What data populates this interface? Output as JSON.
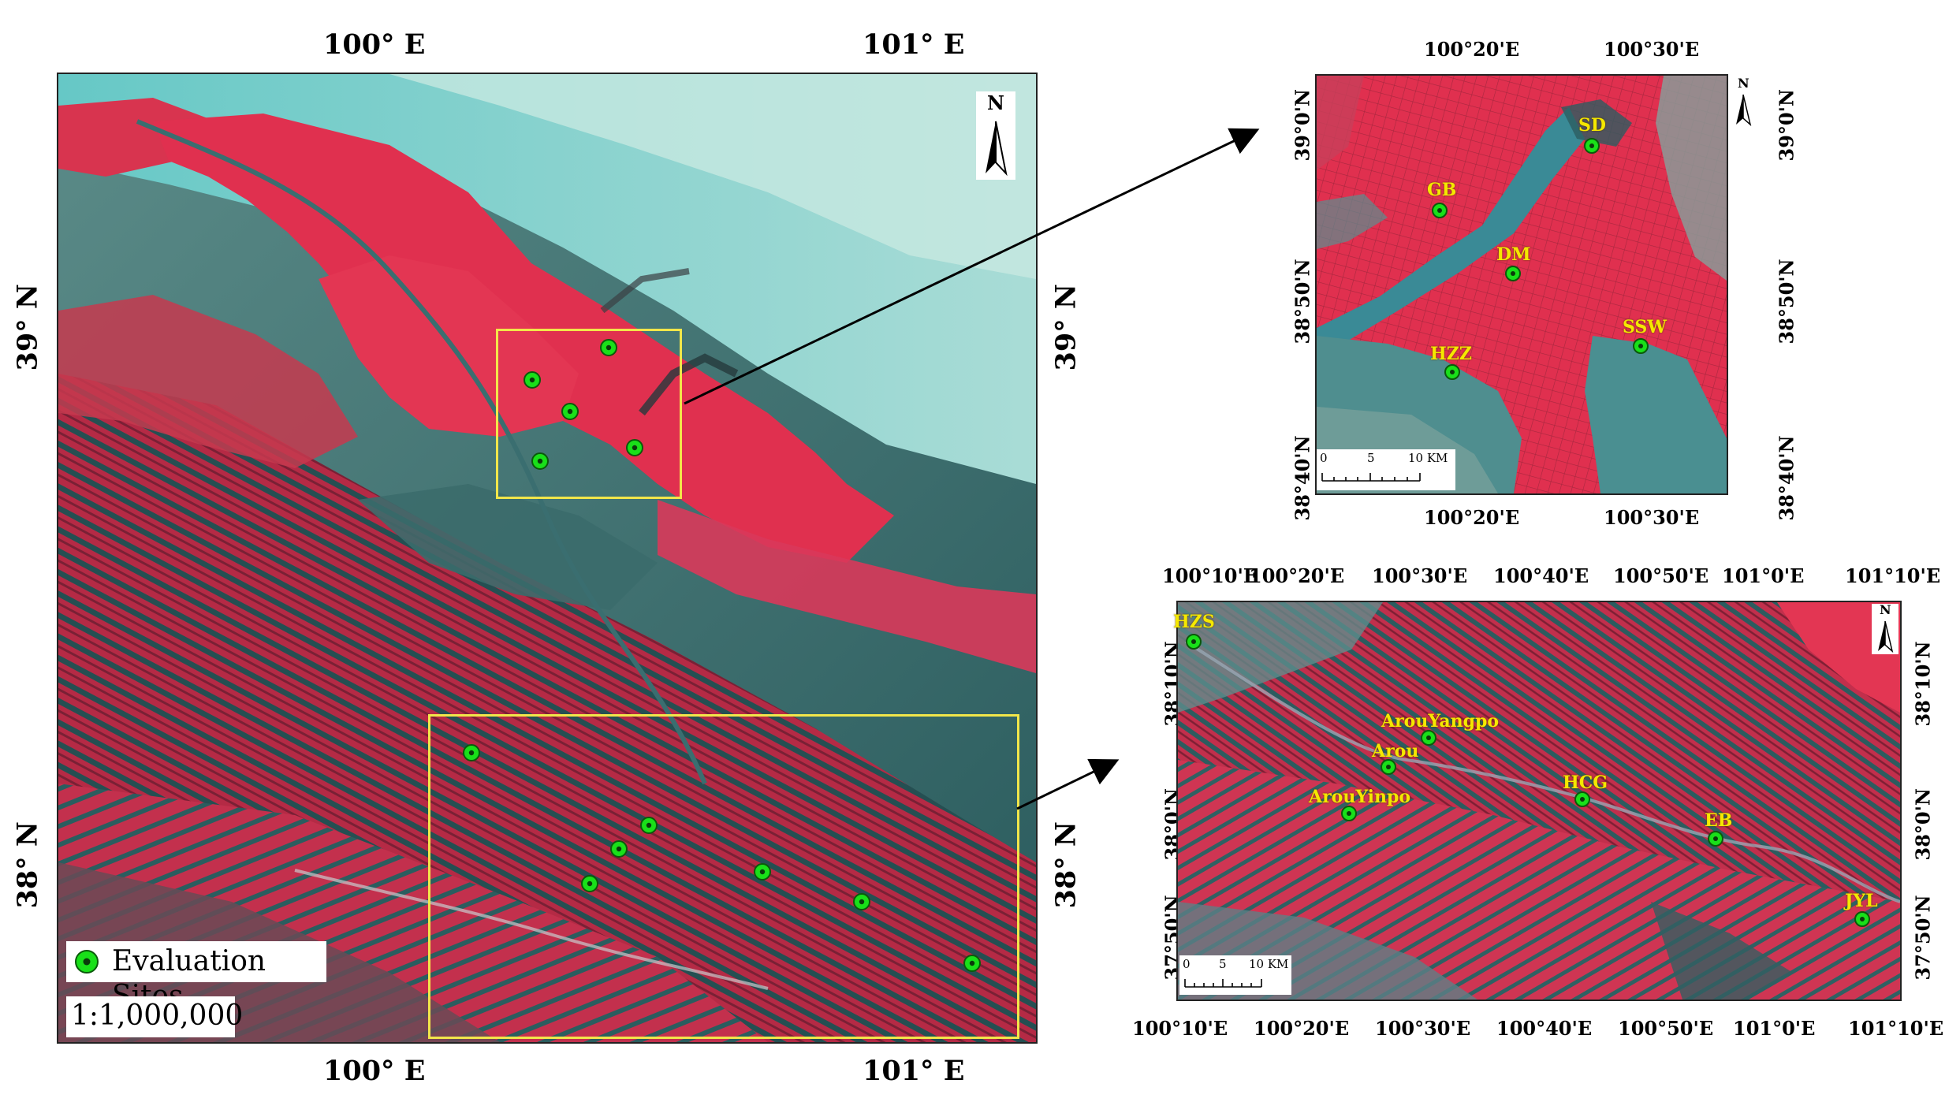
{
  "main_map": {
    "lon_ticks": [
      "100° E",
      "101° E"
    ],
    "lat_ticks": [
      "39° N",
      "38° N"
    ],
    "legend_label": "Evaluation Sites",
    "scale_text": "1:1,000,000",
    "north_label": "N"
  },
  "inset_top": {
    "lon_ticks": [
      "100°20'E",
      "100°30'E"
    ],
    "lat_ticks": [
      "39°0'N",
      "38°50'N",
      "38°40'N"
    ],
    "scale_labels": [
      "0",
      "5",
      "10 KM"
    ],
    "north_label": "N",
    "sites": [
      "SD",
      "GB",
      "DM",
      "SSW",
      "HZZ"
    ]
  },
  "inset_bottom": {
    "lon_ticks": [
      "100°10'E",
      "100°20'E",
      "100°30'E",
      "100°40'E",
      "100°50'E",
      "101°0'E",
      "101°10'E"
    ],
    "lat_ticks": [
      "38°10'N",
      "38°0'N",
      "37°50'N"
    ],
    "scale_labels": [
      "0",
      "5",
      "10 KM"
    ],
    "north_label": "N",
    "sites": [
      "HZS",
      "ArouYangpo",
      "Arou",
      "HCG",
      "ArouYinpo",
      "EB",
      "JYL"
    ]
  },
  "colors": {
    "vegetation": "#e0304f",
    "desert": "#7fd3cf",
    "mountain_shadow": "#2a5c5e",
    "site_marker": "#19e019",
    "site_label": "#f5e800",
    "frame": "#f2e64a"
  }
}
